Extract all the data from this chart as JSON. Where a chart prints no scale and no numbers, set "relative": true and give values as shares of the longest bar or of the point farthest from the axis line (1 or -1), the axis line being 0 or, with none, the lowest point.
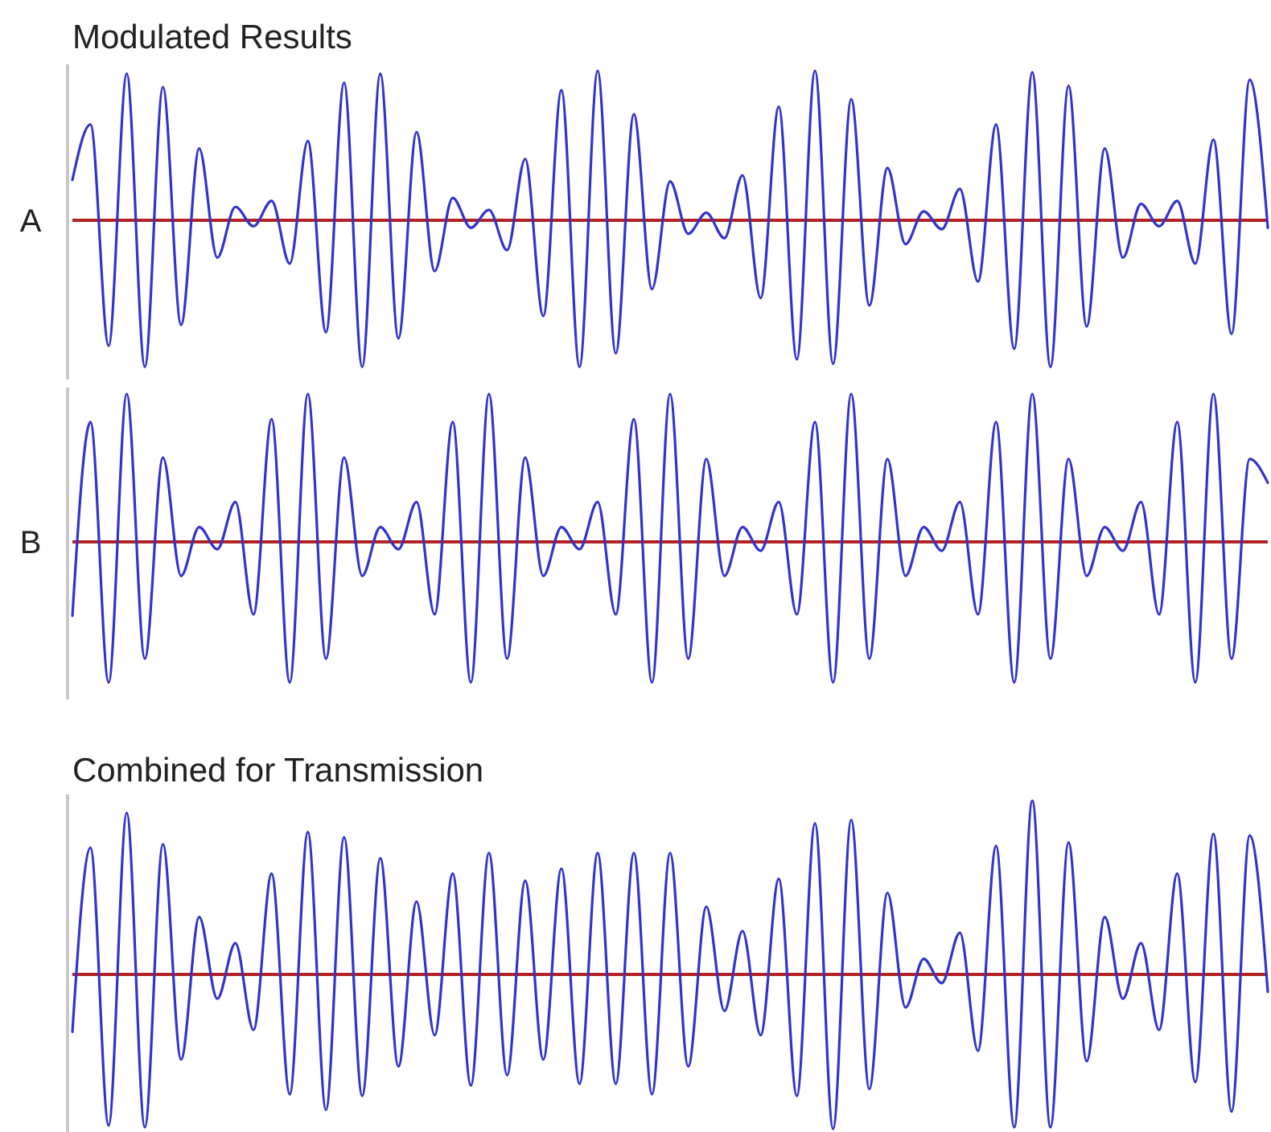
{
  "chart_data": [
    {
      "type": "line",
      "title": "Modulated Results",
      "ylabel": "A",
      "relative": true,
      "ref_lines": [
        {
          "axis": "y",
          "value": 0,
          "color": "#b22222"
        }
      ],
      "categories": [
        null,
        null,
        null,
        null,
        null,
        null,
        null,
        null,
        null,
        null,
        null,
        null,
        null,
        null,
        null,
        null,
        null,
        null,
        null,
        null,
        null,
        null,
        null,
        null,
        null,
        null,
        null,
        null,
        null,
        null,
        null,
        null,
        null,
        null,
        null,
        null,
        null,
        null,
        null,
        null,
        null,
        null,
        null,
        null,
        null,
        null,
        null,
        null,
        null,
        null,
        null,
        null,
        null,
        null,
        null,
        null,
        null,
        null,
        null,
        null,
        null,
        null,
        null,
        null,
        null,
        null,
        null
      ],
      "series": [
        {
          "color": "#3333cc",
          "values": [
            0.27,
            0.64,
            -0.84,
            0.98,
            -0.98,
            0.89,
            -0.7,
            0.48,
            -0.25,
            0.09,
            -0.04,
            0.13,
            -0.29,
            0.53,
            -0.75,
            0.92,
            -0.98,
            0.98,
            -0.79,
            0.59,
            -0.34,
            0.15,
            -0.05,
            0.07,
            -0.2,
            0.41,
            -0.64,
            0.87,
            -0.98,
            1.0,
            -0.89,
            0.71,
            -0.46,
            0.26,
            -0.09,
            0.05,
            -0.12,
            0.3,
            -0.52,
            0.76,
            -0.93,
            1.0,
            -0.96,
            0.81,
            -0.57,
            0.35,
            -0.16,
            0.06,
            -0.06,
            0.21,
            -0.41,
            0.64,
            -0.86,
            0.99,
            -0.98,
            0.9,
            -0.71,
            0.48,
            -0.25,
            0.11,
            -0.04,
            0.13,
            -0.29,
            0.54,
            -0.76,
            0.94,
            -0.05
          ]
        }
      ]
    },
    {
      "type": "line",
      "ylabel": "B",
      "relative": true,
      "ref_lines": [
        {
          "axis": "y",
          "value": 0,
          "color": "#b22222"
        }
      ],
      "categories": [
        null,
        null,
        null,
        null,
        null,
        null,
        null,
        null,
        null,
        null,
        null,
        null,
        null,
        null,
        null,
        null,
        null,
        null,
        null,
        null,
        null,
        null,
        null,
        null,
        null,
        null,
        null,
        null,
        null,
        null,
        null,
        null,
        null,
        null,
        null,
        null,
        null,
        null,
        null,
        null,
        null,
        null,
        null,
        null,
        null,
        null,
        null,
        null,
        null,
        null,
        null,
        null,
        null,
        null,
        null,
        null,
        null,
        null,
        null,
        null,
        null,
        null,
        null,
        null,
        null,
        null,
        null
      ],
      "series": [
        {
          "color": "#3333cc",
          "values": [
            -0.5,
            0.81,
            -0.95,
            1.0,
            -0.79,
            0.57,
            -0.23,
            0.1,
            -0.05,
            0.27,
            -0.49,
            0.83,
            -0.95,
            1.0,
            -0.79,
            0.57,
            -0.23,
            0.1,
            -0.05,
            0.27,
            -0.49,
            0.81,
            -0.95,
            1.0,
            -0.79,
            0.57,
            -0.23,
            0.1,
            -0.05,
            0.27,
            -0.49,
            0.83,
            -0.95,
            1.0,
            -0.79,
            0.56,
            -0.23,
            0.1,
            -0.06,
            0.27,
            -0.49,
            0.81,
            -0.95,
            1.0,
            -0.79,
            0.56,
            -0.23,
            0.1,
            -0.06,
            0.27,
            -0.49,
            0.81,
            -0.95,
            1.0,
            -0.79,
            0.56,
            -0.23,
            0.1,
            -0.06,
            0.27,
            -0.49,
            0.81,
            -0.95,
            1.0,
            -0.79,
            0.56,
            0.4
          ]
        }
      ]
    },
    {
      "type": "line",
      "title": "Combined for Transmission",
      "relative": true,
      "ref_lines": [
        {
          "axis": "y",
          "value": 0,
          "color": "#b22222"
        }
      ],
      "categories": [
        null,
        null,
        null,
        null,
        null,
        null,
        null,
        null,
        null,
        null,
        null,
        null,
        null,
        null,
        null,
        null,
        null,
        null,
        null,
        null,
        null,
        null,
        null,
        null,
        null,
        null,
        null,
        null,
        null,
        null,
        null,
        null,
        null,
        null,
        null,
        null,
        null,
        null,
        null,
        null,
        null,
        null,
        null,
        null,
        null,
        null,
        null,
        null,
        null,
        null,
        null,
        null,
        null,
        null,
        null,
        null,
        null,
        null,
        null,
        null,
        null,
        null,
        null,
        null,
        null,
        null,
        null
      ],
      "series": [
        {
          "color": "#3333cc",
          "values": [
            -0.33,
            0.73,
            -0.87,
            0.93,
            -0.88,
            0.75,
            -0.49,
            0.33,
            -0.14,
            0.18,
            -0.32,
            0.58,
            -0.69,
            0.82,
            -0.78,
            0.79,
            -0.7,
            0.67,
            -0.53,
            0.42,
            -0.35,
            0.58,
            -0.64,
            0.7,
            -0.58,
            0.54,
            -0.49,
            0.61,
            -0.63,
            0.7,
            -0.63,
            0.7,
            -0.69,
            0.7,
            -0.53,
            0.39,
            -0.21,
            0.25,
            -0.35,
            0.55,
            -0.7,
            0.87,
            -0.89,
            0.89,
            -0.66,
            0.47,
            -0.19,
            0.09,
            -0.05,
            0.24,
            -0.44,
            0.74,
            -0.88,
            1.0,
            -0.88,
            0.76,
            -0.5,
            0.33,
            -0.14,
            0.18,
            -0.32,
            0.58,
            -0.62,
            0.81,
            -0.79,
            0.8,
            -0.1
          ]
        }
      ]
    }
  ]
}
